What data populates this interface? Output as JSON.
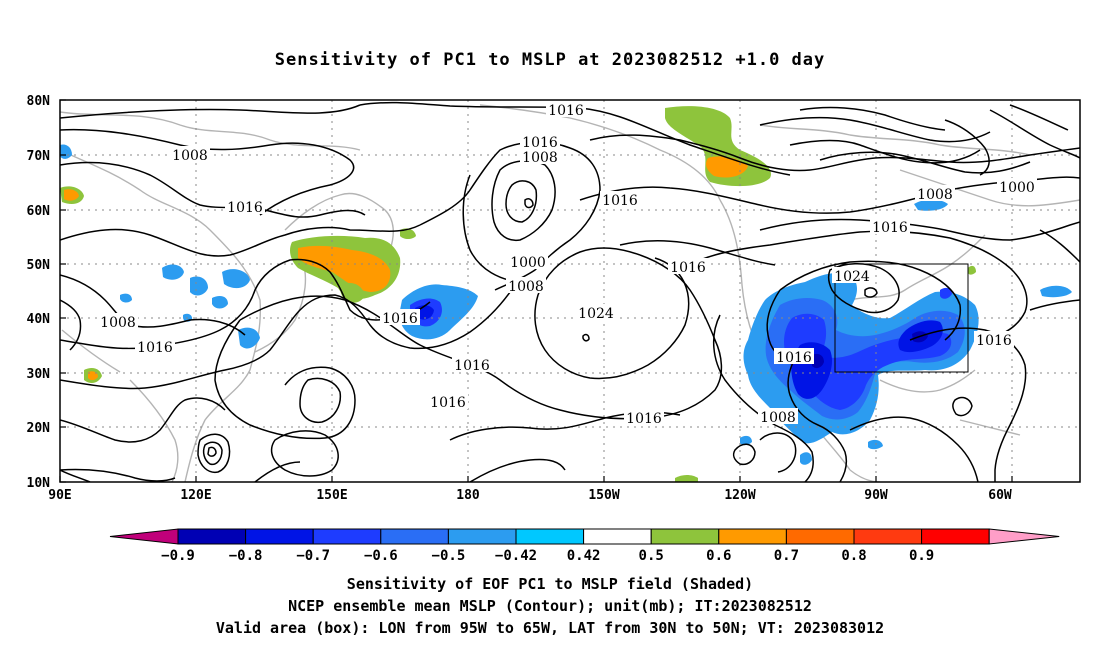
{
  "title": "Sensitivity of PC1 to MSLP at 2023082512 +1.0 day",
  "lat_labels": [
    "80N",
    "70N",
    "60N",
    "50N",
    "40N",
    "30N",
    "20N",
    "10N"
  ],
  "lon_labels": [
    "90E",
    "120E",
    "150E",
    "180",
    "150W",
    "120W",
    "90W",
    "60W"
  ],
  "colorbar": {
    "labels": [
      "-0.9",
      "-0.8",
      "-0.7",
      "-0.6",
      "-0.5",
      "-0.42",
      "0.42",
      "0.5",
      "0.6",
      "0.7",
      "0.8",
      "0.9"
    ],
    "colors": [
      "#c0007a",
      "#0000b4",
      "#0014e6",
      "#1e3cff",
      "#2a6ef5",
      "#2c9cf0",
      "#00c8ff",
      "#ffffff",
      "#8ec43c",
      "#ff9a00",
      "#ff6a00",
      "#ff3a10",
      "#ff0000",
      "#ff9ec8"
    ]
  },
  "contour_labels": [
    {
      "text": "1016"
    },
    {
      "text": "1008"
    },
    {
      "text": "1016"
    },
    {
      "text": "1016"
    },
    {
      "text": "1008"
    },
    {
      "text": "1000"
    },
    {
      "text": "1008"
    },
    {
      "text": "1016"
    },
    {
      "text": "1016"
    },
    {
      "text": "1024"
    },
    {
      "text": "1016"
    },
    {
      "text": "1016"
    },
    {
      "text": "1016"
    },
    {
      "text": "1008"
    },
    {
      "text": "1008"
    },
    {
      "text": "1016"
    },
    {
      "text": "1016"
    },
    {
      "text": "1016"
    },
    {
      "text": "1008"
    },
    {
      "text": "1000"
    },
    {
      "text": "1016"
    },
    {
      "text": "1024"
    },
    {
      "text": "1016"
    },
    {
      "text": "1016"
    }
  ],
  "valid_box": {
    "lon_min": "95W",
    "lon_max": "65W",
    "lat_min": "30N",
    "lat_max": "50N"
  },
  "footer": {
    "line1": "Sensitivity of EOF PC1 to MSLP field (Shaded)",
    "line2": "NCEP ensemble mean MSLP (Contour); unit(mb); IT:2023082512",
    "line3": "Valid area (box): LON from 95W to 65W, LAT from 30N to 50N; VT: 2023083012"
  }
}
